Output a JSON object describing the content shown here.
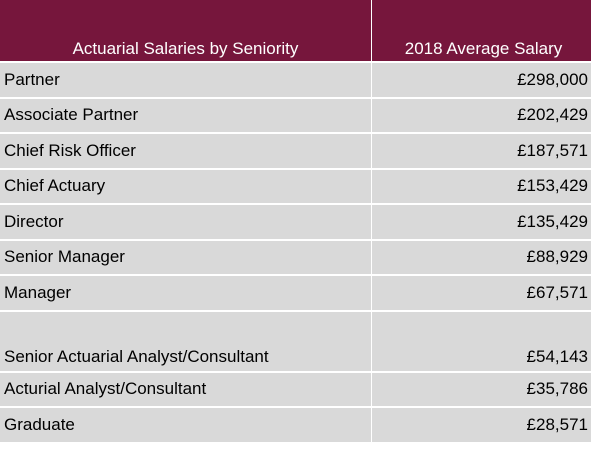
{
  "table": {
    "headers": [
      "Actuarial Salaries by Seniority",
      "2018 Average Salary"
    ],
    "rows": [
      {
        "role": "Partner",
        "salary": "£298,000"
      },
      {
        "role": "Associate Partner",
        "salary": "£202,429"
      },
      {
        "role": "Chief Risk Officer",
        "salary": "£187,571"
      },
      {
        "role": "Chief Actuary",
        "salary": "£153,429"
      },
      {
        "role": "Director",
        "salary": "£135,429"
      },
      {
        "role": "Senior Manager",
        "salary": "£88,929"
      },
      {
        "role": "Manager",
        "salary": "£67,571"
      },
      {
        "role": "Senior Actuarial Analyst/Consultant",
        "salary": "£54,143"
      },
      {
        "role": "Acturial Analyst/Consultant",
        "salary": "£35,786"
      },
      {
        "role": "Graduate",
        "salary": "£28,571"
      }
    ]
  },
  "colors": {
    "header_bg": "#76163c",
    "header_text": "#ffffff",
    "cell_bg": "#d9d9d9"
  }
}
